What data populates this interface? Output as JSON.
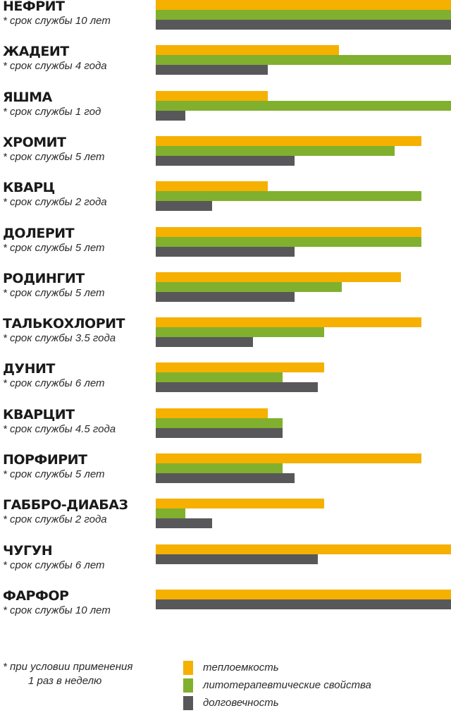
{
  "chart_data": {
    "type": "bar",
    "orientation": "horizontal",
    "categories": [
      "НЕФРИТ",
      "ЖАДЕИТ",
      "ЯШМА",
      "ХРОМИТ",
      "КВАРЦ",
      "ДОЛЕРИТ",
      "РОДИНГИТ",
      "ТАЛЬКОХЛОРИТ",
      "ДУНИТ",
      "КВАРЦИТ",
      "ПОРФИРИТ",
      "ГАББРО-ДИАБАЗ",
      "ЧУГУН",
      "ФАРФОР"
    ],
    "subtitles": [
      "* срок службы 10 лет",
      "* срок службы 4 года",
      "* срок службы 1 год",
      "* срок службы  5 лет",
      "* срок службы  2 года",
      "* срок службы 5 лет",
      "* срок службы 5 лет",
      "* срок службы  3.5 года",
      "* срок службы 6 лет",
      "* срок службы 4.5 года",
      "* срок службы 5 лет",
      "* срок службы  2 года",
      "* срок службы  6 лет",
      "* срок службы 10 лет"
    ],
    "series": [
      {
        "name": "теплоемкость",
        "color": "#f5b000",
        "values": [
          10,
          6.2,
          3.8,
          9,
          3.8,
          9,
          8.3,
          9,
          5.7,
          3.8,
          9,
          5.7,
          10,
          10
        ]
      },
      {
        "name": "литотерапевтические свойства",
        "color": "#80b02e",
        "values": [
          10,
          10,
          10,
          8.1,
          9,
          9,
          6.3,
          5.7,
          4.3,
          4.3,
          4.3,
          1,
          null,
          null
        ]
      },
      {
        "name": "долговечность",
        "color": "#58585a",
        "values": [
          10,
          3.8,
          1,
          4.7,
          1.9,
          4.7,
          4.7,
          3.3,
          5.5,
          4.3,
          4.7,
          1.9,
          5.5,
          10
        ]
      }
    ],
    "xlim": [
      0,
      10
    ],
    "grid": false,
    "legend_position": "bottom"
  },
  "footnote": {
    "line1": "*  при условии применения",
    "line2": "1 раз в неделю"
  }
}
